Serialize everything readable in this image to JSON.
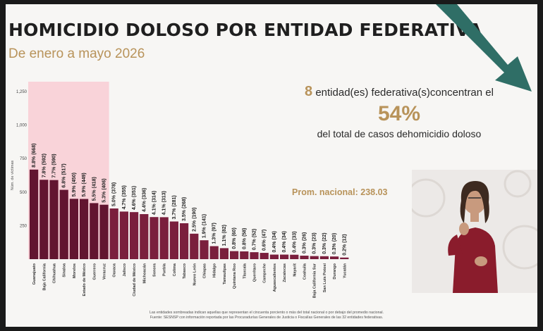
{
  "title": "HOMICIDIO DOLOSO POR ENTIDAD FEDERATIVA",
  "subtitle": "De enero a mayo 2026",
  "headline": {
    "count": "8",
    "line1": "entidad(es) federativa(s)concentran el",
    "percent": "54%",
    "line3": "del total de casos dehomicidio doloso"
  },
  "average_label": "Prom. nacional: 238.03",
  "footnote": {
    "line1": "Las entidades sombreadas indican aquellas que representan el cincuenta porciento o más del total nacional o por debajo del promedio nacional.",
    "line2": "Fuente: SESNSP con información reportada por las Procuradurías Generales de Justicia o Fiscalías Generales de las 32 entidades federativas."
  },
  "colors": {
    "bar": "#7a1f3d",
    "bar_highlight": "#621530",
    "highlight_area": "#f9d3d9",
    "accent": "#b8935a",
    "arrow": "#2f6e66",
    "text": "#1f1f1f"
  },
  "chart_data": {
    "type": "bar",
    "title": "",
    "xlabel": "",
    "ylabel": "Núm. de víctimas",
    "ylim": [
      0,
      1250
    ],
    "yticks": [
      250,
      500,
      750,
      "1,000",
      "1,250"
    ],
    "grid": false,
    "highlight_count": 8,
    "categories": [
      "Guanajuato",
      "Baja California",
      "Chihuahua",
      "Sinaloa",
      "Morelos",
      "Estado de México",
      "Guerrero",
      "Veracruz",
      "Oaxaca",
      "Jalisco",
      "Ciudad de México",
      "Michoacán",
      "Sonora",
      "Puebla",
      "Colima",
      "Tabasco",
      "Nuevo León",
      "Chiapas",
      "Hidalgo",
      "Tamaulipas",
      "Quintana Roo",
      "Tlaxcala",
      "Querétaro",
      "Campeche",
      "Aguascalientes",
      "Zacatecas",
      "Nayarit",
      "Coahuila",
      "Baja California Sur",
      "San Luis Potosí",
      "Durango",
      "Yucatán"
    ],
    "values": [
      668,
      592,
      590,
      517,
      450,
      449,
      418,
      406,
      378,
      355,
      351,
      336,
      314,
      313,
      281,
      268,
      190,
      141,
      97,
      82,
      60,
      58,
      52,
      47,
      34,
      34,
      33,
      26,
      23,
      22,
      20,
      12
    ],
    "labels": [
      "8.8% (668)",
      "7.8% (592)",
      "7.7% (590)",
      "6.8% (517)",
      "5.9% (450)",
      "5.9% (449)",
      "5.5% (418)",
      "5.3% (406)",
      "5.0% (378)",
      "4.7% (355)",
      "4.6% (351)",
      "4.4% (336)",
      "4.1% (314)",
      "4.1% (313)",
      "3.7% (281)",
      "3.5% (268)",
      "2.5% (190)",
      "1.9% (141)",
      "1.3% (97)",
      "1.1% (82)",
      "0.8% (60)",
      "0.8% (58)",
      "0.7% (52)",
      "0.6% (47)",
      "0.4% (34)",
      "0.4% (34)",
      "0.4% (33)",
      "0.3% (26)",
      "0.3% (23)",
      "0.3% (22)",
      "0.3% (20)",
      "0.2% (12)"
    ]
  }
}
